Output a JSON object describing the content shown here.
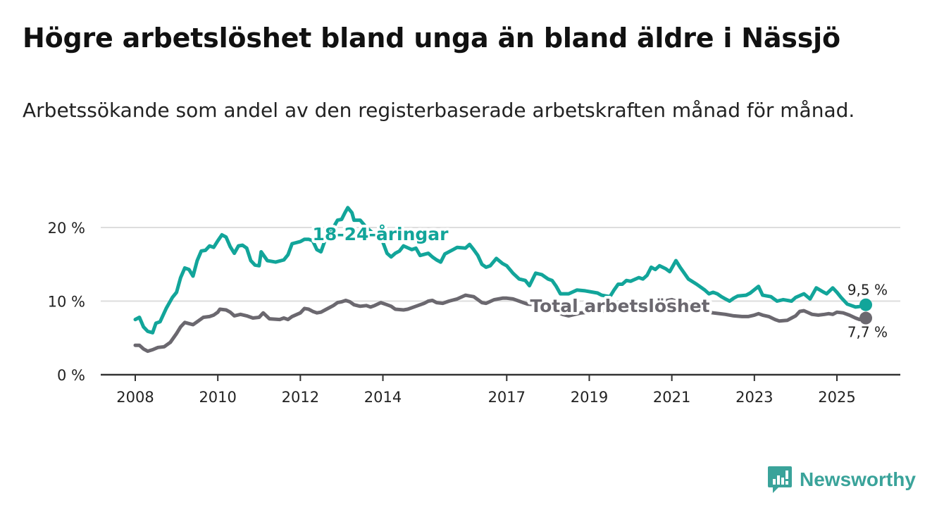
{
  "title": "Högre arbetslöshet bland unga än bland äldre i Nässjö",
  "subtitle": "Arbetssökande som andel av den registerbaserade arbetskraften månad för månad.",
  "brand": {
    "name": "Newsworthy"
  },
  "colors": {
    "youth": "#12a59a",
    "total": "#6b686f",
    "grid": "#dddddd",
    "axis": "#333333",
    "brand": "#3aa39a"
  },
  "chart_data": {
    "type": "line",
    "title": "Högre arbetslöshet bland unga än bland äldre i Nässjö",
    "xlabel": "",
    "ylabel": "",
    "ylim": [
      0,
      20
    ],
    "xlim": [
      2008.0,
      2025.75
    ],
    "grid": true,
    "y_ticks": [
      0,
      10,
      20
    ],
    "y_tick_labels": [
      "0 %",
      "10 %",
      "20 %"
    ],
    "x_ticks": [
      2008,
      2010,
      2012,
      2014,
      2017,
      2019,
      2021,
      2023,
      2025
    ],
    "x_tick_labels": [
      "2008",
      "2010",
      "2012",
      "2014",
      "2017",
      "2019",
      "2021",
      "2023",
      "2025"
    ],
    "series": [
      {
        "name": "18-24-åringar",
        "color": "#12a59a",
        "end_label": "9,5 %",
        "points": [
          [
            2008.0,
            7.5
          ],
          [
            2008.1,
            7.8
          ],
          [
            2008.2,
            6.5
          ],
          [
            2008.3,
            5.9
          ],
          [
            2008.42,
            5.7
          ],
          [
            2008.5,
            7.0
          ],
          [
            2008.6,
            7.2
          ],
          [
            2008.75,
            9.0
          ],
          [
            2008.9,
            10.5
          ],
          [
            2009.0,
            11.2
          ],
          [
            2009.1,
            13.2
          ],
          [
            2009.2,
            14.5
          ],
          [
            2009.3,
            14.3
          ],
          [
            2009.4,
            13.4
          ],
          [
            2009.5,
            15.5
          ],
          [
            2009.6,
            16.8
          ],
          [
            2009.7,
            16.9
          ],
          [
            2009.8,
            17.5
          ],
          [
            2009.9,
            17.3
          ],
          [
            2010.0,
            18.2
          ],
          [
            2010.1,
            19.0
          ],
          [
            2010.2,
            18.7
          ],
          [
            2010.3,
            17.4
          ],
          [
            2010.4,
            16.5
          ],
          [
            2010.5,
            17.5
          ],
          [
            2010.6,
            17.6
          ],
          [
            2010.7,
            17.2
          ],
          [
            2010.8,
            15.5
          ],
          [
            2010.9,
            14.9
          ],
          [
            2011.0,
            14.8
          ],
          [
            2011.05,
            16.7
          ],
          [
            2011.2,
            15.5
          ],
          [
            2011.4,
            15.3
          ],
          [
            2011.6,
            15.6
          ],
          [
            2011.7,
            16.3
          ],
          [
            2011.8,
            17.8
          ],
          [
            2012.0,
            18.1
          ],
          [
            2012.1,
            18.4
          ],
          [
            2012.2,
            18.4
          ],
          [
            2012.3,
            18.2
          ],
          [
            2012.4,
            17.0
          ],
          [
            2012.5,
            16.7
          ],
          [
            2012.6,
            18.3
          ],
          [
            2012.7,
            19.0
          ],
          [
            2012.8,
            20.0
          ],
          [
            2012.9,
            21.0
          ],
          [
            2013.0,
            21.1
          ],
          [
            2013.08,
            22.0
          ],
          [
            2013.15,
            22.7
          ],
          [
            2013.25,
            22.0
          ],
          [
            2013.3,
            21.0
          ],
          [
            2013.45,
            21.0
          ],
          [
            2013.6,
            20.0
          ],
          [
            2013.8,
            19.0
          ],
          [
            2014.0,
            18.0
          ],
          [
            2014.1,
            16.5
          ],
          [
            2014.2,
            16.0
          ],
          [
            2014.3,
            16.5
          ],
          [
            2014.4,
            16.8
          ],
          [
            2014.5,
            17.5
          ],
          [
            2014.7,
            17.0
          ],
          [
            2014.8,
            17.2
          ],
          [
            2014.9,
            16.2
          ],
          [
            2015.1,
            16.5
          ],
          [
            2015.2,
            16.0
          ],
          [
            2015.3,
            15.6
          ],
          [
            2015.4,
            15.3
          ],
          [
            2015.5,
            16.4
          ],
          [
            2015.7,
            17.0
          ],
          [
            2015.8,
            17.3
          ],
          [
            2016.0,
            17.2
          ],
          [
            2016.1,
            17.7
          ],
          [
            2016.2,
            17.0
          ],
          [
            2016.3,
            16.2
          ],
          [
            2016.4,
            15.0
          ],
          [
            2016.5,
            14.6
          ],
          [
            2016.6,
            14.8
          ],
          [
            2016.75,
            15.8
          ],
          [
            2016.9,
            15.1
          ],
          [
            2017.0,
            14.8
          ],
          [
            2017.15,
            13.8
          ],
          [
            2017.3,
            13.0
          ],
          [
            2017.45,
            12.8
          ],
          [
            2017.55,
            12.1
          ],
          [
            2017.7,
            13.8
          ],
          [
            2017.85,
            13.6
          ],
          [
            2018.0,
            13.0
          ],
          [
            2018.1,
            12.8
          ],
          [
            2018.2,
            12.0
          ],
          [
            2018.3,
            11.0
          ],
          [
            2018.5,
            11.0
          ],
          [
            2018.7,
            11.5
          ],
          [
            2018.9,
            11.4
          ],
          [
            2019.2,
            11.1
          ],
          [
            2019.3,
            10.8
          ],
          [
            2019.5,
            10.6
          ],
          [
            2019.6,
            11.5
          ],
          [
            2019.7,
            12.3
          ],
          [
            2019.8,
            12.3
          ],
          [
            2019.9,
            12.8
          ],
          [
            2020.0,
            12.7
          ],
          [
            2020.2,
            13.2
          ],
          [
            2020.3,
            13.0
          ],
          [
            2020.4,
            13.5
          ],
          [
            2020.5,
            14.6
          ],
          [
            2020.6,
            14.3
          ],
          [
            2020.7,
            14.8
          ],
          [
            2020.85,
            14.4
          ],
          [
            2020.95,
            14.0
          ],
          [
            2021.1,
            15.5
          ],
          [
            2021.2,
            14.6
          ],
          [
            2021.4,
            13.0
          ],
          [
            2021.6,
            12.3
          ],
          [
            2021.8,
            11.5
          ],
          [
            2021.9,
            11.0
          ],
          [
            2022.0,
            11.2
          ],
          [
            2022.1,
            11.0
          ],
          [
            2022.2,
            10.6
          ],
          [
            2022.3,
            10.3
          ],
          [
            2022.4,
            10.0
          ],
          [
            2022.5,
            10.4
          ],
          [
            2022.6,
            10.7
          ],
          [
            2022.8,
            10.8
          ],
          [
            2022.9,
            11.1
          ],
          [
            2023.1,
            12.0
          ],
          [
            2023.2,
            10.8
          ],
          [
            2023.4,
            10.6
          ],
          [
            2023.55,
            10.0
          ],
          [
            2023.7,
            10.2
          ],
          [
            2023.9,
            10.0
          ],
          [
            2024.0,
            10.5
          ],
          [
            2024.2,
            11.0
          ],
          [
            2024.35,
            10.3
          ],
          [
            2024.5,
            11.8
          ],
          [
            2024.65,
            11.3
          ],
          [
            2024.75,
            11.0
          ],
          [
            2024.9,
            11.8
          ],
          [
            2025.0,
            11.2
          ],
          [
            2025.1,
            10.5
          ],
          [
            2025.25,
            9.6
          ],
          [
            2025.45,
            9.2
          ],
          [
            2025.6,
            9.3
          ],
          [
            2025.7,
            9.5
          ]
        ]
      },
      {
        "name": "Total arbetslöshet",
        "color": "#6b686f",
        "end_label": "7,7 %",
        "points": [
          [
            2008.0,
            4.0
          ],
          [
            2008.1,
            4.0
          ],
          [
            2008.2,
            3.5
          ],
          [
            2008.3,
            3.2
          ],
          [
            2008.42,
            3.4
          ],
          [
            2008.55,
            3.7
          ],
          [
            2008.7,
            3.8
          ],
          [
            2008.85,
            4.4
          ],
          [
            2009.0,
            5.6
          ],
          [
            2009.1,
            6.5
          ],
          [
            2009.2,
            7.1
          ],
          [
            2009.4,
            6.8
          ],
          [
            2009.5,
            7.2
          ],
          [
            2009.65,
            7.8
          ],
          [
            2009.8,
            7.9
          ],
          [
            2009.9,
            8.1
          ],
          [
            2010.0,
            8.5
          ],
          [
            2010.05,
            8.9
          ],
          [
            2010.2,
            8.8
          ],
          [
            2010.3,
            8.5
          ],
          [
            2010.4,
            8.0
          ],
          [
            2010.55,
            8.2
          ],
          [
            2010.7,
            8.0
          ],
          [
            2010.85,
            7.7
          ],
          [
            2011.0,
            7.8
          ],
          [
            2011.1,
            8.4
          ],
          [
            2011.25,
            7.6
          ],
          [
            2011.5,
            7.5
          ],
          [
            2011.6,
            7.7
          ],
          [
            2011.7,
            7.5
          ],
          [
            2011.8,
            7.9
          ],
          [
            2012.0,
            8.4
          ],
          [
            2012.1,
            9.0
          ],
          [
            2012.2,
            8.9
          ],
          [
            2012.3,
            8.6
          ],
          [
            2012.4,
            8.4
          ],
          [
            2012.5,
            8.5
          ],
          [
            2012.6,
            8.8
          ],
          [
            2012.7,
            9.1
          ],
          [
            2012.8,
            9.4
          ],
          [
            2012.9,
            9.8
          ],
          [
            2013.0,
            9.9
          ],
          [
            2013.1,
            10.1
          ],
          [
            2013.2,
            9.9
          ],
          [
            2013.3,
            9.5
          ],
          [
            2013.45,
            9.3
          ],
          [
            2013.6,
            9.4
          ],
          [
            2013.7,
            9.2
          ],
          [
            2013.8,
            9.4
          ],
          [
            2013.95,
            9.8
          ],
          [
            2014.1,
            9.5
          ],
          [
            2014.2,
            9.3
          ],
          [
            2014.3,
            8.9
          ],
          [
            2014.5,
            8.8
          ],
          [
            2014.6,
            8.9
          ],
          [
            2014.8,
            9.3
          ],
          [
            2015.0,
            9.7
          ],
          [
            2015.1,
            10.0
          ],
          [
            2015.2,
            10.1
          ],
          [
            2015.3,
            9.8
          ],
          [
            2015.45,
            9.7
          ],
          [
            2015.6,
            10.0
          ],
          [
            2015.8,
            10.3
          ],
          [
            2016.0,
            10.8
          ],
          [
            2016.1,
            10.7
          ],
          [
            2016.2,
            10.6
          ],
          [
            2016.3,
            10.2
          ],
          [
            2016.4,
            9.8
          ],
          [
            2016.5,
            9.7
          ],
          [
            2016.7,
            10.2
          ],
          [
            2016.9,
            10.4
          ],
          [
            2017.0,
            10.4
          ],
          [
            2017.15,
            10.3
          ],
          [
            2017.3,
            10.0
          ],
          [
            2017.4,
            9.8
          ],
          [
            2017.5,
            9.6
          ],
          [
            2017.8,
            9.5
          ],
          [
            2018.0,
            9.0
          ],
          [
            2018.2,
            8.6
          ],
          [
            2018.35,
            8.2
          ],
          [
            2018.5,
            8.0
          ],
          [
            2018.8,
            8.4
          ],
          [
            2019.2,
            8.6
          ],
          [
            2019.5,
            8.7
          ],
          [
            2019.8,
            9.0
          ],
          [
            2020.1,
            9.2
          ],
          [
            2020.3,
            9.2
          ],
          [
            2020.5,
            9.7
          ],
          [
            2020.8,
            10.0
          ],
          [
            2021.0,
            10.2
          ],
          [
            2021.2,
            9.8
          ],
          [
            2021.4,
            9.4
          ],
          [
            2021.6,
            9.0
          ],
          [
            2021.8,
            8.6
          ],
          [
            2022.0,
            8.4
          ],
          [
            2022.3,
            8.2
          ],
          [
            2022.5,
            8.0
          ],
          [
            2022.7,
            7.9
          ],
          [
            2022.85,
            7.9
          ],
          [
            2023.0,
            8.1
          ],
          [
            2023.1,
            8.3
          ],
          [
            2023.2,
            8.1
          ],
          [
            2023.35,
            7.9
          ],
          [
            2023.5,
            7.5
          ],
          [
            2023.6,
            7.3
          ],
          [
            2023.8,
            7.4
          ],
          [
            2023.9,
            7.7
          ],
          [
            2024.0,
            8.0
          ],
          [
            2024.1,
            8.6
          ],
          [
            2024.2,
            8.7
          ],
          [
            2024.4,
            8.2
          ],
          [
            2024.55,
            8.1
          ],
          [
            2024.7,
            8.2
          ],
          [
            2024.8,
            8.3
          ],
          [
            2024.9,
            8.2
          ],
          [
            2025.0,
            8.5
          ],
          [
            2025.15,
            8.4
          ],
          [
            2025.3,
            8.1
          ],
          [
            2025.45,
            7.7
          ],
          [
            2025.55,
            7.5
          ],
          [
            2025.65,
            7.8
          ],
          [
            2025.7,
            7.7
          ]
        ]
      }
    ]
  }
}
